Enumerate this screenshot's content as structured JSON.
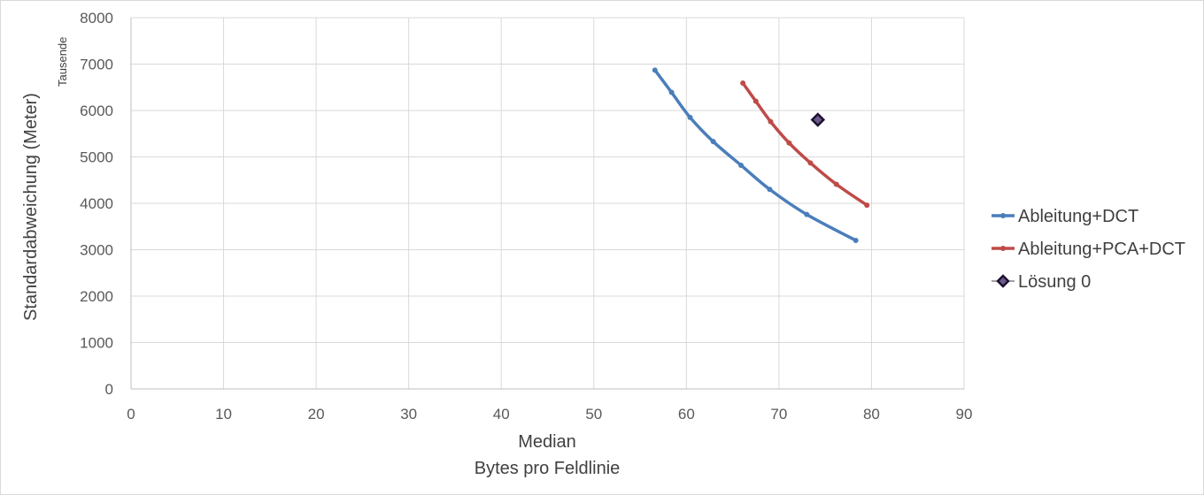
{
  "chart_data": {
    "type": "scatter",
    "title": "",
    "xlabel_line1": "Median",
    "xlabel_line2": "Bytes pro Feldlinie",
    "ylabel": "Standardabweichung (Meter)",
    "y_display_units": "Tausende",
    "xlim": [
      0,
      90
    ],
    "ylim": [
      0,
      8000
    ],
    "x_ticks": [
      0,
      10,
      20,
      30,
      40,
      50,
      60,
      70,
      80,
      90
    ],
    "y_ticks": [
      0,
      1000,
      2000,
      3000,
      4000,
      5000,
      6000,
      7000,
      8000
    ],
    "y_tick_labels": [
      "0",
      "1000",
      "2000",
      "3000",
      "4000",
      "5000",
      "6000",
      "7000",
      "8000"
    ],
    "grid": true,
    "legend_position": "right",
    "series": [
      {
        "name": "Ableitung+DCT",
        "color": "#4a7ebb",
        "marker": "circle",
        "line": true,
        "x": [
          56.6,
          58.4,
          60.4,
          62.9,
          65.9,
          69.0,
          73.0,
          78.3
        ],
        "y": [
          6870,
          6390,
          5850,
          5330,
          4820,
          4300,
          3760,
          3200
        ]
      },
      {
        "name": "Ableitung+PCA+DCT",
        "color": "#be4b48",
        "marker": "circle",
        "line": true,
        "x": [
          66.1,
          67.5,
          69.1,
          71.1,
          73.4,
          76.2,
          79.5
        ],
        "y": [
          6590,
          6200,
          5760,
          5300,
          4870,
          4410,
          3960
        ]
      },
      {
        "name": "Lösung 0",
        "color": "#3b2850",
        "marker": "diamond",
        "line": false,
        "x": [
          74.2
        ],
        "y": [
          5800
        ]
      }
    ]
  }
}
